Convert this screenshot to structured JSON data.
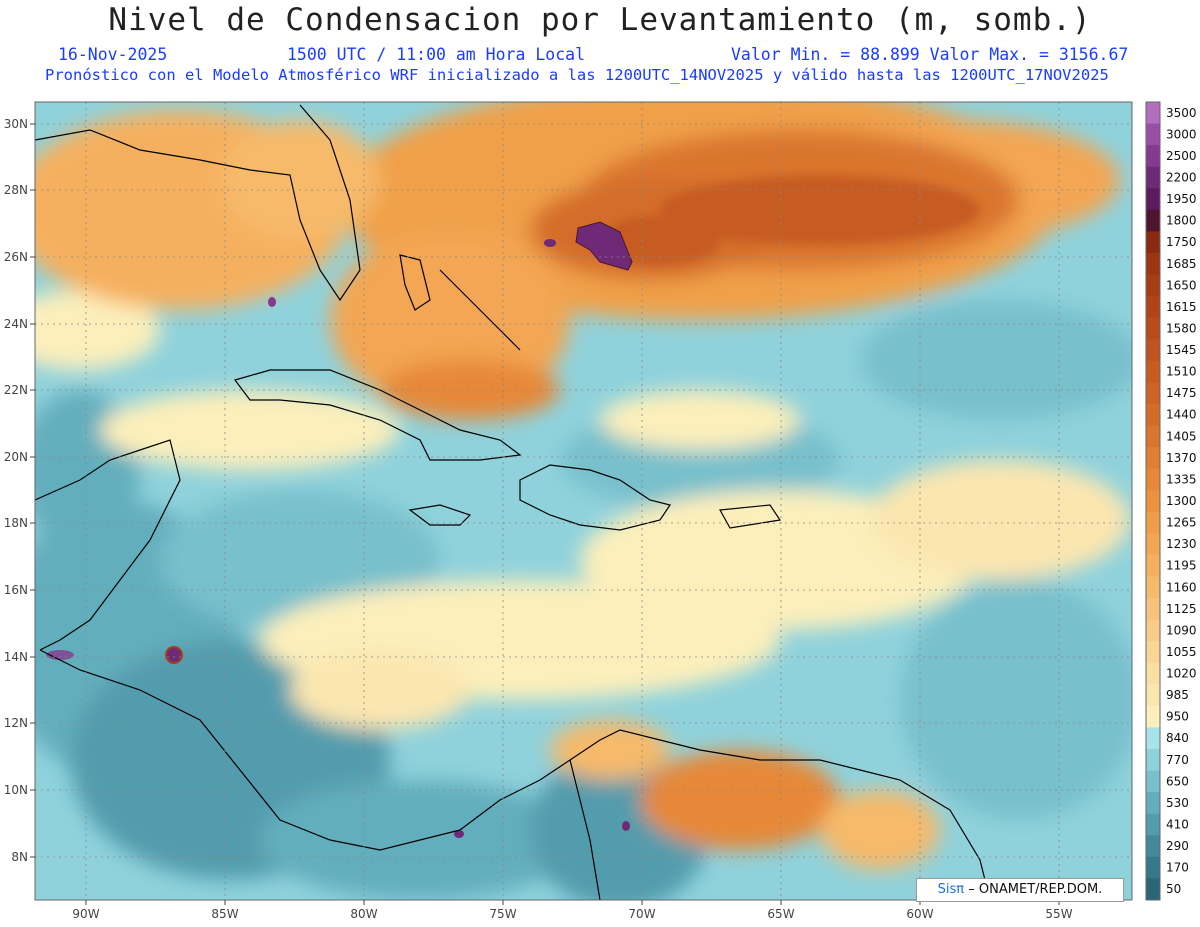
{
  "header": {
    "title": "Nivel de Condensacion por Levantamiento (m, somb.)",
    "date": "16-Nov-2025",
    "time": "1500 UTC / 11:00 am Hora Local",
    "min_max": "Valor Min. = 88.899  Valor Max. = 3156.67",
    "description": "Pronóstico con el Modelo Atmosférico WRF inicializado a las 1200UTC_14NOV2025 y válido hasta las  1200UTC_17NOV2025"
  },
  "map": {
    "lon_ticks": [
      "90W",
      "85W",
      "80W",
      "75W",
      "70W",
      "65W",
      "60W",
      "55W"
    ],
    "lat_ticks": [
      "30N",
      "28N",
      "26N",
      "24N",
      "22N",
      "20N",
      "18N",
      "16N",
      "14N",
      "12N",
      "10N",
      "8N"
    ]
  },
  "colorbar": {
    "levels": [
      "3500",
      "3000",
      "2500",
      "2200",
      "1950",
      "1800",
      "1750",
      "1685",
      "1650",
      "1615",
      "1580",
      "1545",
      "1510",
      "1475",
      "1440",
      "1405",
      "1370",
      "1335",
      "1300",
      "1265",
      "1230",
      "1195",
      "1160",
      "1125",
      "1090",
      "1055",
      "1020",
      "985",
      "950",
      "840",
      "770",
      "650",
      "530",
      "410",
      "290",
      "170",
      "50"
    ],
    "colors": [
      "#b36fbf",
      "#9a4fa6",
      "#843a8f",
      "#6e2a76",
      "#5a1c5e",
      "#4d1530",
      "#8a2a10",
      "#9c3512",
      "#a63d14",
      "#b04418",
      "#b84c1b",
      "#bf541e",
      "#c65c22",
      "#cd6426",
      "#d46d2a",
      "#da752e",
      "#e07f33",
      "#e68838",
      "#ec923f",
      "#f09c48",
      "#f3a653",
      "#f5b05f",
      "#f6ba6b",
      "#f7c37a",
      "#f8cc88",
      "#f9d596",
      "#fadea4",
      "#fbe6b0",
      "#fcefbb",
      "#a8e3ea",
      "#8fd2dc",
      "#78c0cc",
      "#63aebd",
      "#529cad",
      "#43899b",
      "#37778a",
      "#2b6677"
    ]
  },
  "credit": {
    "sis": "Sisπ",
    "org": "– ONAMET/REP.DOM."
  }
}
